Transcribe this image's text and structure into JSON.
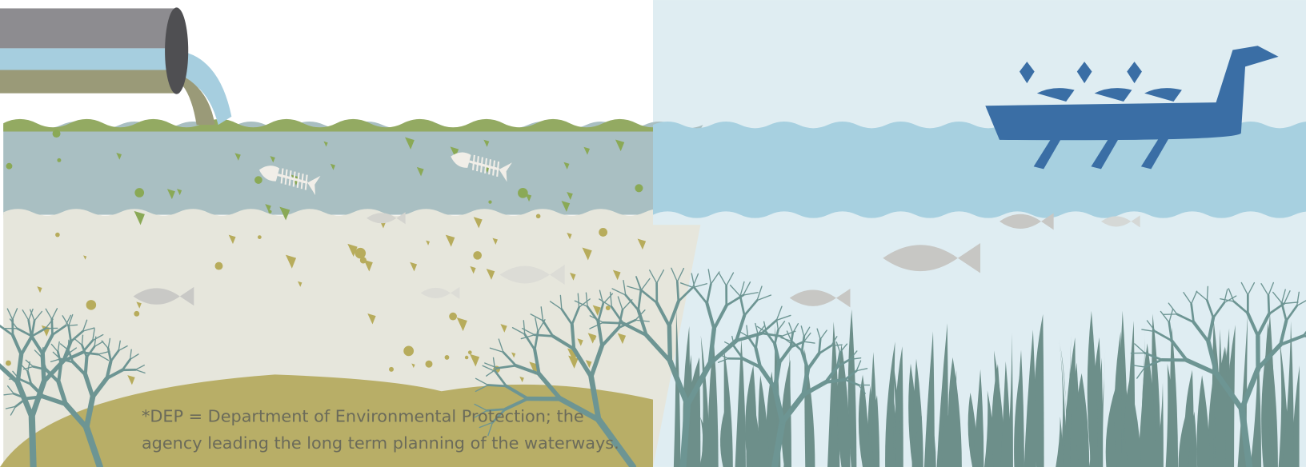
{
  "footnote": {
    "lines": [
      "*DEP = Department of Environmental Protection; the",
      "agency leading the long term planning of the waterways."
    ]
  }
}
